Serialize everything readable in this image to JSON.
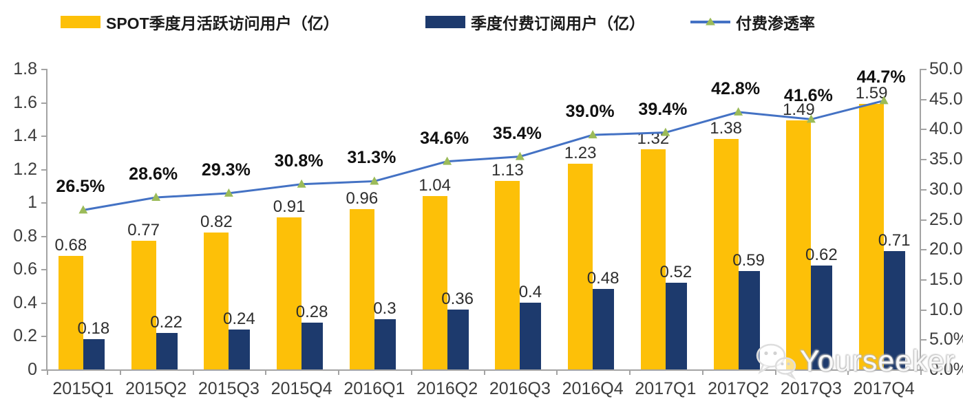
{
  "legend": [
    {
      "label": "SPOT季度月活跃访问用户（亿）",
      "type": "bar",
      "color": "#FDC008"
    },
    {
      "label": "季度付费订阅用户（亿）",
      "type": "bar",
      "color": "#1D3A6D"
    },
    {
      "label": "付费渗透率",
      "type": "line",
      "color": "#4472C4",
      "marker_color": "#9BBB59"
    }
  ],
  "chart_data": {
    "type": "combo-bar-line",
    "title": "",
    "grid": false,
    "legend_position": "top",
    "categories": [
      "2015Q1",
      "2015Q2",
      "2015Q3",
      "2015Q4",
      "2016Q1",
      "2016Q2",
      "2016Q3",
      "2016Q4",
      "2017Q1",
      "2017Q2",
      "2017Q3",
      "2017Q4"
    ],
    "series": [
      {
        "name": "SPOT季度月活跃访问用户（亿）",
        "type": "bar",
        "axis": "left",
        "color": "#FDC008",
        "values": [
          0.68,
          0.77,
          0.82,
          0.91,
          0.96,
          1.04,
          1.13,
          1.23,
          1.32,
          1.38,
          1.49,
          1.59
        ],
        "labels": [
          "0.68",
          "0.77",
          "0.82",
          "0.91",
          "0.96",
          "1.04",
          "1.13",
          "1.23",
          "1.32",
          "1.38",
          "1.49",
          "1.59"
        ]
      },
      {
        "name": "季度付费订阅用户（亿）",
        "type": "bar",
        "axis": "left",
        "color": "#1D3A6D",
        "values": [
          0.18,
          0.22,
          0.24,
          0.28,
          0.3,
          0.36,
          0.4,
          0.48,
          0.52,
          0.59,
          0.62,
          0.71
        ],
        "labels": [
          "0.18",
          "0.22",
          "0.24",
          "0.28",
          "0.3",
          "0.36",
          "0.4",
          "0.48",
          "0.52",
          "0.59",
          "0.62",
          "0.71"
        ]
      },
      {
        "name": "付费渗透率",
        "type": "line",
        "axis": "right",
        "color": "#4472C4",
        "marker_color": "#9BBB59",
        "values": [
          26.5,
          28.6,
          29.3,
          30.8,
          31.3,
          34.6,
          35.4,
          39.0,
          39.4,
          42.8,
          41.6,
          44.7
        ],
        "labels": [
          "26.5%",
          "28.6%",
          "29.3%",
          "30.8%",
          "31.3%",
          "34.6%",
          "35.4%",
          "39.0%",
          "39.4%",
          "42.8%",
          "41.6%",
          "44.7%"
        ]
      }
    ],
    "left_axis": {
      "min": 0,
      "max": 1.8,
      "step": 0.2,
      "tick_labels": [
        "0",
        "0.2",
        "0.4",
        "0.6",
        "0.8",
        "1",
        "1.2",
        "1.4",
        "1.6",
        "1.8"
      ]
    },
    "right_axis": {
      "min": 0,
      "max": 50,
      "step": 5,
      "tick_labels": [
        "0.0%",
        "5.0%",
        "10.0%",
        "15.0%",
        "20.0%",
        "25.0%",
        "30.0%",
        "35.0%",
        "40.0%",
        "45.0%",
        "50.0%"
      ]
    }
  },
  "watermark": {
    "text": "Yourseeker",
    "icon": "wechat-icon"
  }
}
